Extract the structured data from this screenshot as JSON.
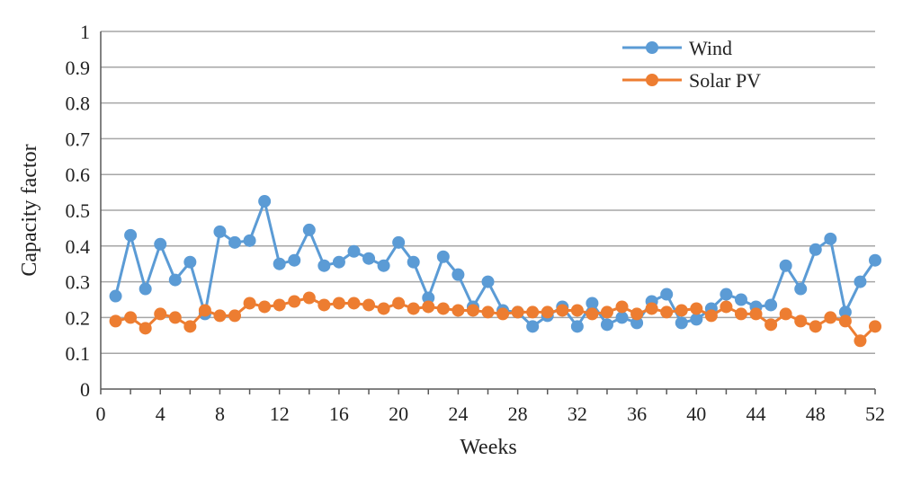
{
  "chart_data": {
    "type": "line",
    "title": "",
    "xlabel": "Weeks",
    "ylabel": "Capacity factor",
    "xlim": [
      0,
      52
    ],
    "ylim": [
      0,
      1
    ],
    "x_ticks": [
      0,
      4,
      8,
      12,
      16,
      20,
      24,
      28,
      32,
      36,
      40,
      44,
      48,
      52
    ],
    "y_ticks": [
      0,
      0.1,
      0.2,
      0.3,
      0.4,
      0.5,
      0.6,
      0.7,
      0.8,
      0.9,
      1
    ],
    "y_tick_labels": [
      "0",
      "0.1",
      "0.2",
      "0.3",
      "0.4",
      "0.5",
      "0.6",
      "0.7",
      "0.8",
      "0.9",
      "1"
    ],
    "grid": "horizontal",
    "legend_position": "top-right",
    "x": [
      1,
      2,
      3,
      4,
      5,
      6,
      7,
      8,
      9,
      10,
      11,
      12,
      13,
      14,
      15,
      16,
      17,
      18,
      19,
      20,
      21,
      22,
      23,
      24,
      25,
      26,
      27,
      28,
      29,
      30,
      31,
      32,
      33,
      34,
      35,
      36,
      37,
      38,
      39,
      40,
      41,
      42,
      43,
      44,
      45,
      46,
      47,
      48,
      49,
      50,
      51,
      52
    ],
    "series": [
      {
        "name": "Wind",
        "color": "#5b9bd5",
        "values": [
          0.26,
          0.43,
          0.28,
          0.405,
          0.305,
          0.355,
          0.21,
          0.44,
          0.41,
          0.415,
          0.525,
          0.35,
          0.36,
          0.445,
          0.345,
          0.355,
          0.385,
          0.365,
          0.345,
          0.41,
          0.355,
          0.255,
          0.37,
          0.32,
          0.23,
          0.3,
          0.22,
          0.215,
          0.175,
          0.205,
          0.23,
          0.175,
          0.24,
          0.18,
          0.2,
          0.185,
          0.245,
          0.265,
          0.185,
          0.195,
          0.225,
          0.265,
          0.25,
          0.23,
          0.235,
          0.345,
          0.28,
          0.39,
          0.42,
          0.215,
          0.3,
          0.36
        ]
      },
      {
        "name": "Solar PV",
        "color": "#ed7d31",
        "values": [
          0.19,
          0.2,
          0.17,
          0.21,
          0.2,
          0.175,
          0.22,
          0.205,
          0.205,
          0.24,
          0.23,
          0.235,
          0.245,
          0.255,
          0.235,
          0.24,
          0.24,
          0.235,
          0.225,
          0.24,
          0.225,
          0.23,
          0.225,
          0.22,
          0.22,
          0.215,
          0.21,
          0.215,
          0.215,
          0.215,
          0.22,
          0.22,
          0.21,
          0.215,
          0.23,
          0.21,
          0.225,
          0.215,
          0.22,
          0.225,
          0.205,
          0.23,
          0.21,
          0.21,
          0.18,
          0.21,
          0.19,
          0.175,
          0.2,
          0.19,
          0.135,
          0.175
        ]
      }
    ]
  }
}
